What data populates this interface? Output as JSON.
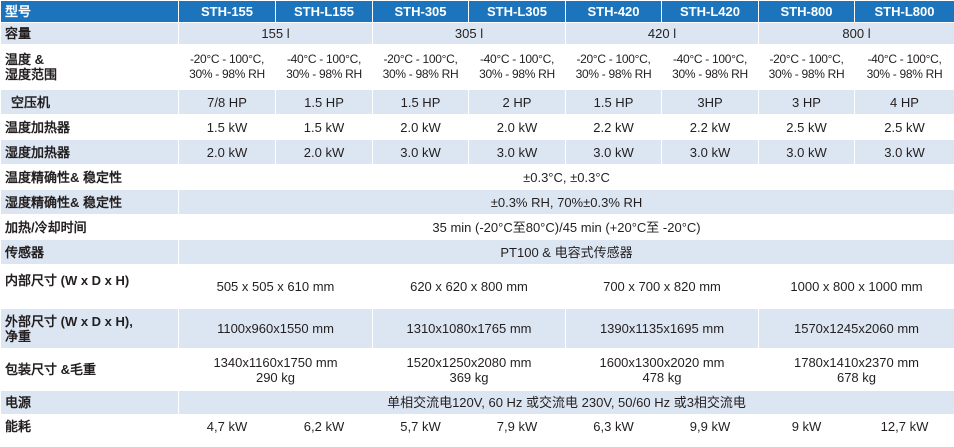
{
  "header": {
    "label": "型号",
    "models": [
      "STH-155",
      "STH-L155",
      "STH-305",
      "STH-L305",
      "STH-420",
      "STH-L420",
      "STH-800",
      "STH-L800"
    ]
  },
  "rows": {
    "capacity": {
      "label": "容量",
      "values": [
        "155 l",
        "305 l",
        "420 l",
        "800 l"
      ]
    },
    "range": {
      "label_line1": "温度 &",
      "label_line2": "湿度范围",
      "values": [
        {
          "temp": "-20°C - 100°C,",
          "rh": "30% - 98% RH"
        },
        {
          "temp": "-40°C - 100°C,",
          "rh": "30% - 98% RH"
        },
        {
          "temp": "-20°C - 100°C,",
          "rh": "30% - 98% RH"
        },
        {
          "temp": "-40°C - 100°C,",
          "rh": "30% - 98% RH"
        },
        {
          "temp": "-20°C - 100°C,",
          "rh": "30% - 98% RH"
        },
        {
          "temp": "-40°C - 100°C,",
          "rh": "30% - 98% RH"
        },
        {
          "temp": "-20°C - 100°C,",
          "rh": "30% - 98% RH"
        },
        {
          "temp": "-40°C - 100°C,",
          "rh": "30% - 98% RH"
        }
      ]
    },
    "compressor": {
      "label": "空压机",
      "values": [
        "7/8 HP",
        "1.5 HP",
        "1.5 HP",
        "2 HP",
        "1.5 HP",
        "3HP",
        "3 HP",
        "4 HP"
      ]
    },
    "temp_heater": {
      "label": "温度加热器",
      "values": [
        "1.5 kW",
        "1.5 kW",
        "2.0 kW",
        "2.0 kW",
        "2.2 kW",
        "2.2 kW",
        "2.5 kW",
        "2.5 kW"
      ]
    },
    "hum_heater": {
      "label": "湿度加热器",
      "values": [
        "2.0 kW",
        "2.0 kW",
        "3.0 kW",
        "3.0 kW",
        "3.0 kW",
        "3.0 kW",
        "3.0 kW",
        "3.0 kW"
      ]
    },
    "temp_accuracy": {
      "label": "温度精确性& 稳定性",
      "value": "±0.3°C, ±0.3°C"
    },
    "hum_accuracy": {
      "label": "湿度精确性& 稳定性",
      "value": "±0.3% RH, 70%±0.3% RH"
    },
    "heat_cool": {
      "label": "加热/冷却时间",
      "value": "35 min (-20°C至80°C)/45 min (+20°C至 -20°C)"
    },
    "sensor": {
      "label": "传感器",
      "value": "PT100 & 电容式传感器"
    },
    "inner_dim": {
      "label": "内部尺寸 (W x D x H)",
      "values": [
        "505 x 505 x 610 mm",
        "620 x 620 x 800 mm",
        "700 x 700 x 820 mm",
        "1000 x 800 x 1000 mm"
      ]
    },
    "outer_dim": {
      "label_line1": "外部尺寸 (W x D x H),",
      "label_line2": "净重",
      "values": [
        "1100x960x1550 mm",
        "1310x1080x1765 mm",
        "1390x1135x1695 mm",
        "1570x1245x2060 mm"
      ]
    },
    "pack_dim": {
      "label": "包装尺寸 &毛重",
      "values": [
        {
          "dim": "1340x1160x1750 mm",
          "weight": "290 kg"
        },
        {
          "dim": "1520x1250x2080 mm",
          "weight": "369 kg"
        },
        {
          "dim": "1600x1300x2020 mm",
          "weight": "478 kg"
        },
        {
          "dim": "1780x1410x2370 mm",
          "weight": "678 kg"
        }
      ]
    },
    "power": {
      "label": "电源",
      "value": "单相交流电120V, 60 Hz 或交流电 230V, 50/60 Hz 或3相交流电"
    },
    "consumption": {
      "label": "能耗",
      "values": [
        "4,7 kW",
        "6,2 kW",
        "5,7 kW",
        "7,9 kW",
        "6,3 kW",
        "9,9 kW",
        "9 kW",
        "12,7 kW"
      ]
    }
  },
  "colors": {
    "header_bg": "#1c75bc",
    "stripe_bg": "#dce6f2",
    "text": "#231f20"
  }
}
